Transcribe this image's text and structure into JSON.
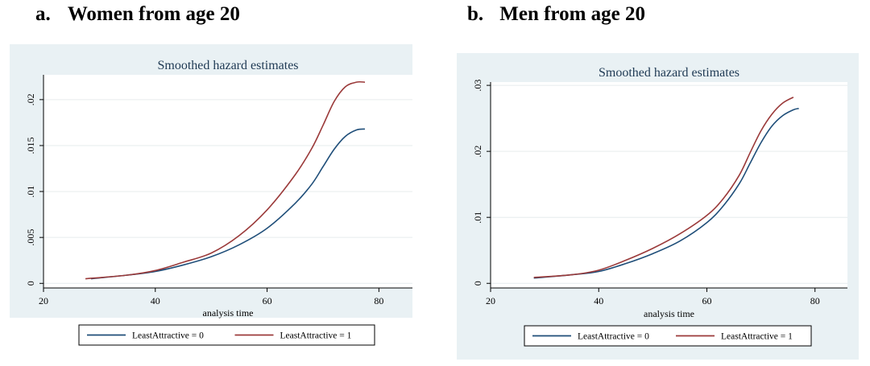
{
  "headings": [
    {
      "letter": "a.",
      "text": "Women from age 20"
    },
    {
      "letter": "b.",
      "text": "Men from age 20"
    }
  ],
  "colors": {
    "series0": "#1f4e79",
    "series1": "#9b3a3a"
  },
  "chart_data": [
    {
      "type": "line",
      "title": "Smoothed hazard estimates",
      "xlabel": "analysis time",
      "ylabel": "",
      "xlim": [
        20,
        86
      ],
      "ylim": [
        -0.0005,
        0.0227
      ],
      "xticks": [
        20,
        40,
        60,
        80
      ],
      "xtick_labels": [
        "20",
        "40",
        "60",
        "80"
      ],
      "yticks": [
        0,
        0.005,
        0.01,
        0.015,
        0.02
      ],
      "ytick_labels": [
        "0",
        ".005",
        ".01",
        ".015",
        ".02"
      ],
      "grid": true,
      "legend_position": "bottom",
      "series": [
        {
          "name": "LeastAttractive = 0",
          "x": [
            28.5,
            35,
            40,
            45,
            50,
            55,
            60,
            65,
            68,
            70,
            72,
            74,
            76,
            77.5
          ],
          "y": [
            0.0005,
            0.0009,
            0.0013,
            0.002,
            0.0029,
            0.0042,
            0.006,
            0.0087,
            0.0108,
            0.0127,
            0.0146,
            0.016,
            0.0167,
            0.0168
          ]
        },
        {
          "name": "LeastAttractive = 1",
          "x": [
            27.5,
            35,
            40,
            45,
            50,
            55,
            60,
            65,
            68,
            70,
            72,
            74,
            76,
            77.5
          ],
          "y": [
            0.0005,
            0.0009,
            0.0014,
            0.0023,
            0.0033,
            0.0052,
            0.008,
            0.0118,
            0.0147,
            0.0172,
            0.0198,
            0.0214,
            0.0219,
            0.0219
          ]
        }
      ]
    },
    {
      "type": "line",
      "title": "Smoothed hazard estimates",
      "xlabel": "analysis time",
      "ylabel": "",
      "xlim": [
        20,
        86
      ],
      "ylim": [
        -0.0007,
        0.0305
      ],
      "xticks": [
        20,
        40,
        60,
        80
      ],
      "xtick_labels": [
        "20",
        "40",
        "60",
        "80"
      ],
      "yticks": [
        0,
        0.01,
        0.02,
        0.03
      ],
      "ytick_labels": [
        "0",
        ".01",
        ".02",
        ".03"
      ],
      "grid": true,
      "legend_position": "bottom",
      "series": [
        {
          "name": "LeastAttractive = 0",
          "x": [
            28,
            35,
            40,
            45,
            50,
            55,
            60,
            63,
            66,
            68,
            70,
            72,
            74,
            76,
            77
          ],
          "y": [
            0.0008,
            0.0013,
            0.0018,
            0.003,
            0.0045,
            0.0064,
            0.0092,
            0.0117,
            0.0151,
            0.0182,
            0.0213,
            0.0238,
            0.0254,
            0.0263,
            0.0265
          ]
        },
        {
          "name": "LeastAttractive = 1",
          "x": [
            28,
            35,
            40,
            45,
            50,
            55,
            60,
            63,
            66,
            68,
            70,
            72,
            74,
            76
          ],
          "y": [
            0.0009,
            0.0013,
            0.002,
            0.0035,
            0.0053,
            0.0075,
            0.0103,
            0.0128,
            0.0164,
            0.0198,
            0.0231,
            0.0256,
            0.0273,
            0.0282
          ]
        }
      ]
    }
  ]
}
